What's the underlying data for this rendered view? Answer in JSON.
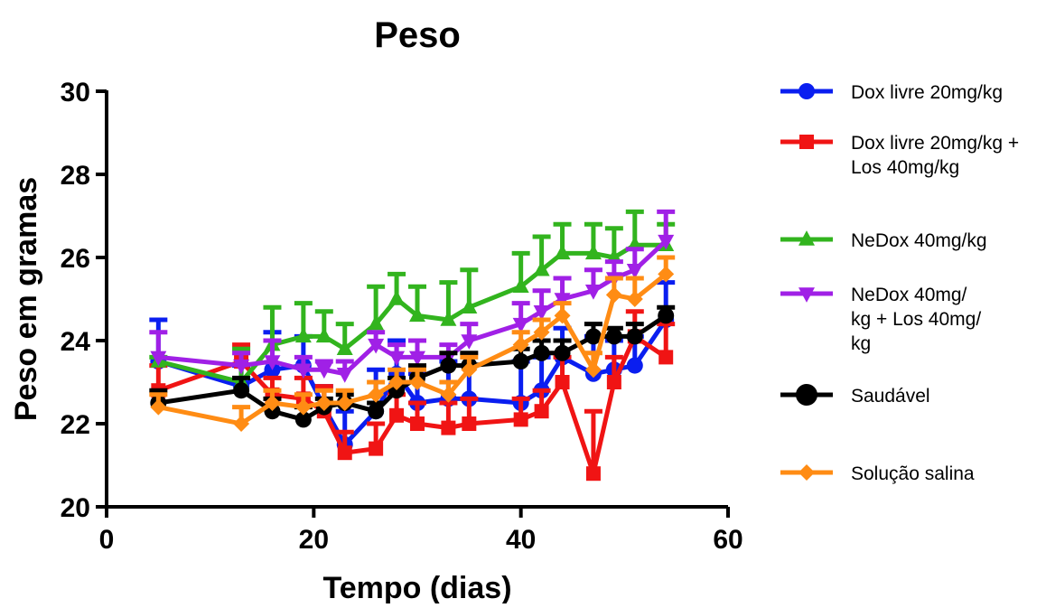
{
  "chart_data": {
    "type": "line",
    "title": "Peso",
    "xlabel": "Tempo (dias)",
    "ylabel": "Peso em gramas",
    "xlim": [
      0,
      60
    ],
    "ylim": [
      20,
      30
    ],
    "xticks": [
      0,
      20,
      40,
      60
    ],
    "yticks": [
      20,
      22,
      24,
      26,
      28,
      30
    ],
    "grid": false,
    "legend_position": "right",
    "x": [
      5,
      13,
      16,
      19,
      21,
      23,
      26,
      28,
      30,
      33,
      35,
      40,
      42,
      44,
      47,
      49,
      51,
      54
    ],
    "series": [
      {
        "name": "Dox livre 20mg/kg",
        "color": "#0a1ef0",
        "marker": "circle",
        "values": [
          23.5,
          22.9,
          23.3,
          23.4,
          22.4,
          21.5,
          22.3,
          23.2,
          22.5,
          22.6,
          22.6,
          22.5,
          22.8,
          23.6,
          23.2,
          23.3,
          23.4,
          24.5
        ],
        "errors": [
          1.0,
          0.5,
          0.9,
          0.7,
          0.5,
          0.8,
          1.0,
          0.8,
          0.7,
          0.9,
          0.8,
          1.0,
          0.8,
          0.7,
          0.9,
          0.7,
          0.7,
          0.9
        ]
      },
      {
        "name": "Dox livre 20mg/kg + Los 40mg/kg",
        "color": "#f01414",
        "marker": "square",
        "values": [
          22.8,
          23.5,
          22.7,
          22.6,
          22.3,
          21.3,
          21.4,
          22.2,
          22.0,
          21.9,
          22.0,
          22.1,
          22.3,
          23.0,
          20.8,
          23.0,
          24.1,
          23.6
        ],
        "errors": [
          0.6,
          0.4,
          0.4,
          0.5,
          0.6,
          0.5,
          0.6,
          0.5,
          0.5,
          0.6,
          0.6,
          0.5,
          0.5,
          0.6,
          1.5,
          0.6,
          0.6,
          0.8
        ]
      },
      {
        "name": "NeDox 40mg/kg",
        "color": "#32b41e",
        "marker": "triangle-up",
        "values": [
          23.5,
          23.0,
          23.9,
          24.1,
          24.1,
          23.8,
          24.4,
          25.0,
          24.6,
          24.5,
          24.8,
          25.3,
          25.7,
          26.1,
          26.1,
          26.0,
          26.3,
          26.3
        ],
        "errors": [
          0.1,
          0.8,
          0.9,
          0.8,
          0.6,
          0.6,
          0.9,
          0.6,
          0.7,
          0.9,
          0.9,
          0.8,
          0.8,
          0.7,
          0.7,
          0.7,
          0.8,
          0.5
        ]
      },
      {
        "name": "NeDox 40mg/ kg + Los 40mg/ kg",
        "color": "#a020e6",
        "marker": "triangle-down",
        "values": [
          23.6,
          23.4,
          23.5,
          23.3,
          23.3,
          23.2,
          23.9,
          23.6,
          23.6,
          23.6,
          24.0,
          24.4,
          24.7,
          25.0,
          25.2,
          25.5,
          25.7,
          26.4
        ],
        "errors": [
          0.6,
          0.3,
          0.5,
          0.3,
          0.2,
          0.3,
          0.3,
          0.3,
          0.4,
          0.3,
          0.4,
          0.5,
          0.5,
          0.5,
          0.5,
          0.4,
          0.5,
          0.7
        ]
      },
      {
        "name": "Saudável",
        "color": "#000000",
        "marker": "circle",
        "values": [
          22.5,
          22.8,
          22.3,
          22.1,
          22.4,
          22.5,
          22.3,
          22.8,
          23.1,
          23.4,
          23.4,
          23.5,
          23.7,
          23.7,
          24.1,
          24.1,
          24.1,
          24.6
        ],
        "errors": [
          0.3,
          0.3,
          0.3,
          0.3,
          0.2,
          0.2,
          0.2,
          0.3,
          0.3,
          0.3,
          0.3,
          0.3,
          0.3,
          0.3,
          0.3,
          0.2,
          0.3,
          0.2
        ]
      },
      {
        "name": "Solução salina",
        "color": "#ff8c14",
        "marker": "diamond",
        "values": [
          22.4,
          22.0,
          22.5,
          22.4,
          22.5,
          22.5,
          22.7,
          23.0,
          23.0,
          22.7,
          23.3,
          23.9,
          24.2,
          24.6,
          23.3,
          25.1,
          25.0,
          25.6
        ],
        "errors": [
          0.3,
          0.4,
          0.3,
          0.3,
          0.3,
          0.3,
          0.3,
          0.3,
          0.3,
          0.3,
          0.3,
          0.3,
          0.3,
          0.3,
          0.4,
          0.4,
          0.5,
          0.4
        ]
      }
    ]
  }
}
